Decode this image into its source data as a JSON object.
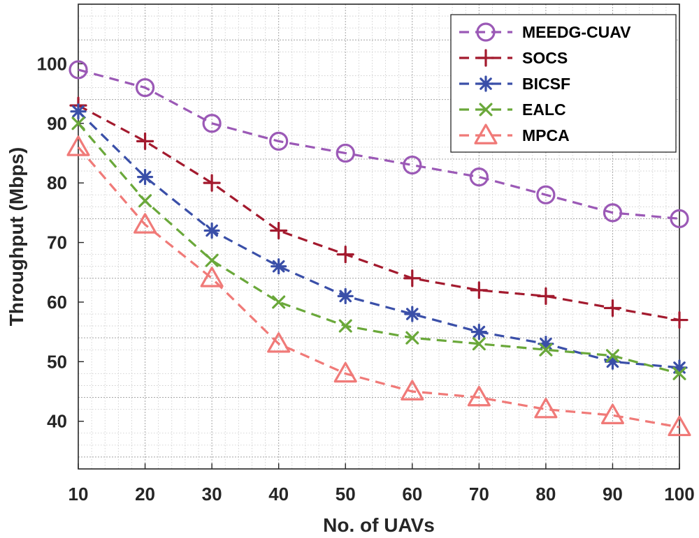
{
  "chart_data": {
    "type": "line",
    "title": "",
    "xlabel": "No. of UAVs",
    "ylabel": "Throughput (Mbps)",
    "x": [
      10,
      20,
      30,
      40,
      50,
      60,
      70,
      80,
      90,
      100
    ],
    "xlim": [
      10,
      100
    ],
    "ylim": [
      32,
      110
    ],
    "xticks": [
      10,
      20,
      30,
      40,
      50,
      60,
      70,
      80,
      90,
      100
    ],
    "yticks": [
      40,
      50,
      60,
      70,
      80,
      90,
      100
    ],
    "grid": true,
    "minor_grid": true,
    "legend_position": "top-right",
    "series": [
      {
        "name": "MEEDG-CUAV",
        "color": "#9b59b6",
        "marker": "circle",
        "values": [
          99,
          96,
          90,
          87,
          85,
          83,
          81,
          78,
          75,
          74
        ]
      },
      {
        "name": "SOCS",
        "color": "#a31a2e",
        "marker": "plus",
        "values": [
          93,
          87,
          80,
          72,
          68,
          64,
          62,
          61,
          59,
          57
        ]
      },
      {
        "name": "BICSF",
        "color": "#3a4fa8",
        "marker": "asterisk",
        "values": [
          92,
          81,
          72,
          66,
          61,
          58,
          55,
          53,
          50,
          49
        ]
      },
      {
        "name": "EALC",
        "color": "#6aa83a",
        "marker": "x",
        "values": [
          90,
          77,
          67,
          60,
          56,
          54,
          53,
          52,
          51,
          48
        ]
      },
      {
        "name": "MPCA",
        "color": "#f07a78",
        "marker": "triangle",
        "values": [
          86,
          73,
          64,
          53,
          48,
          45,
          44,
          42,
          41,
          39
        ]
      }
    ]
  }
}
